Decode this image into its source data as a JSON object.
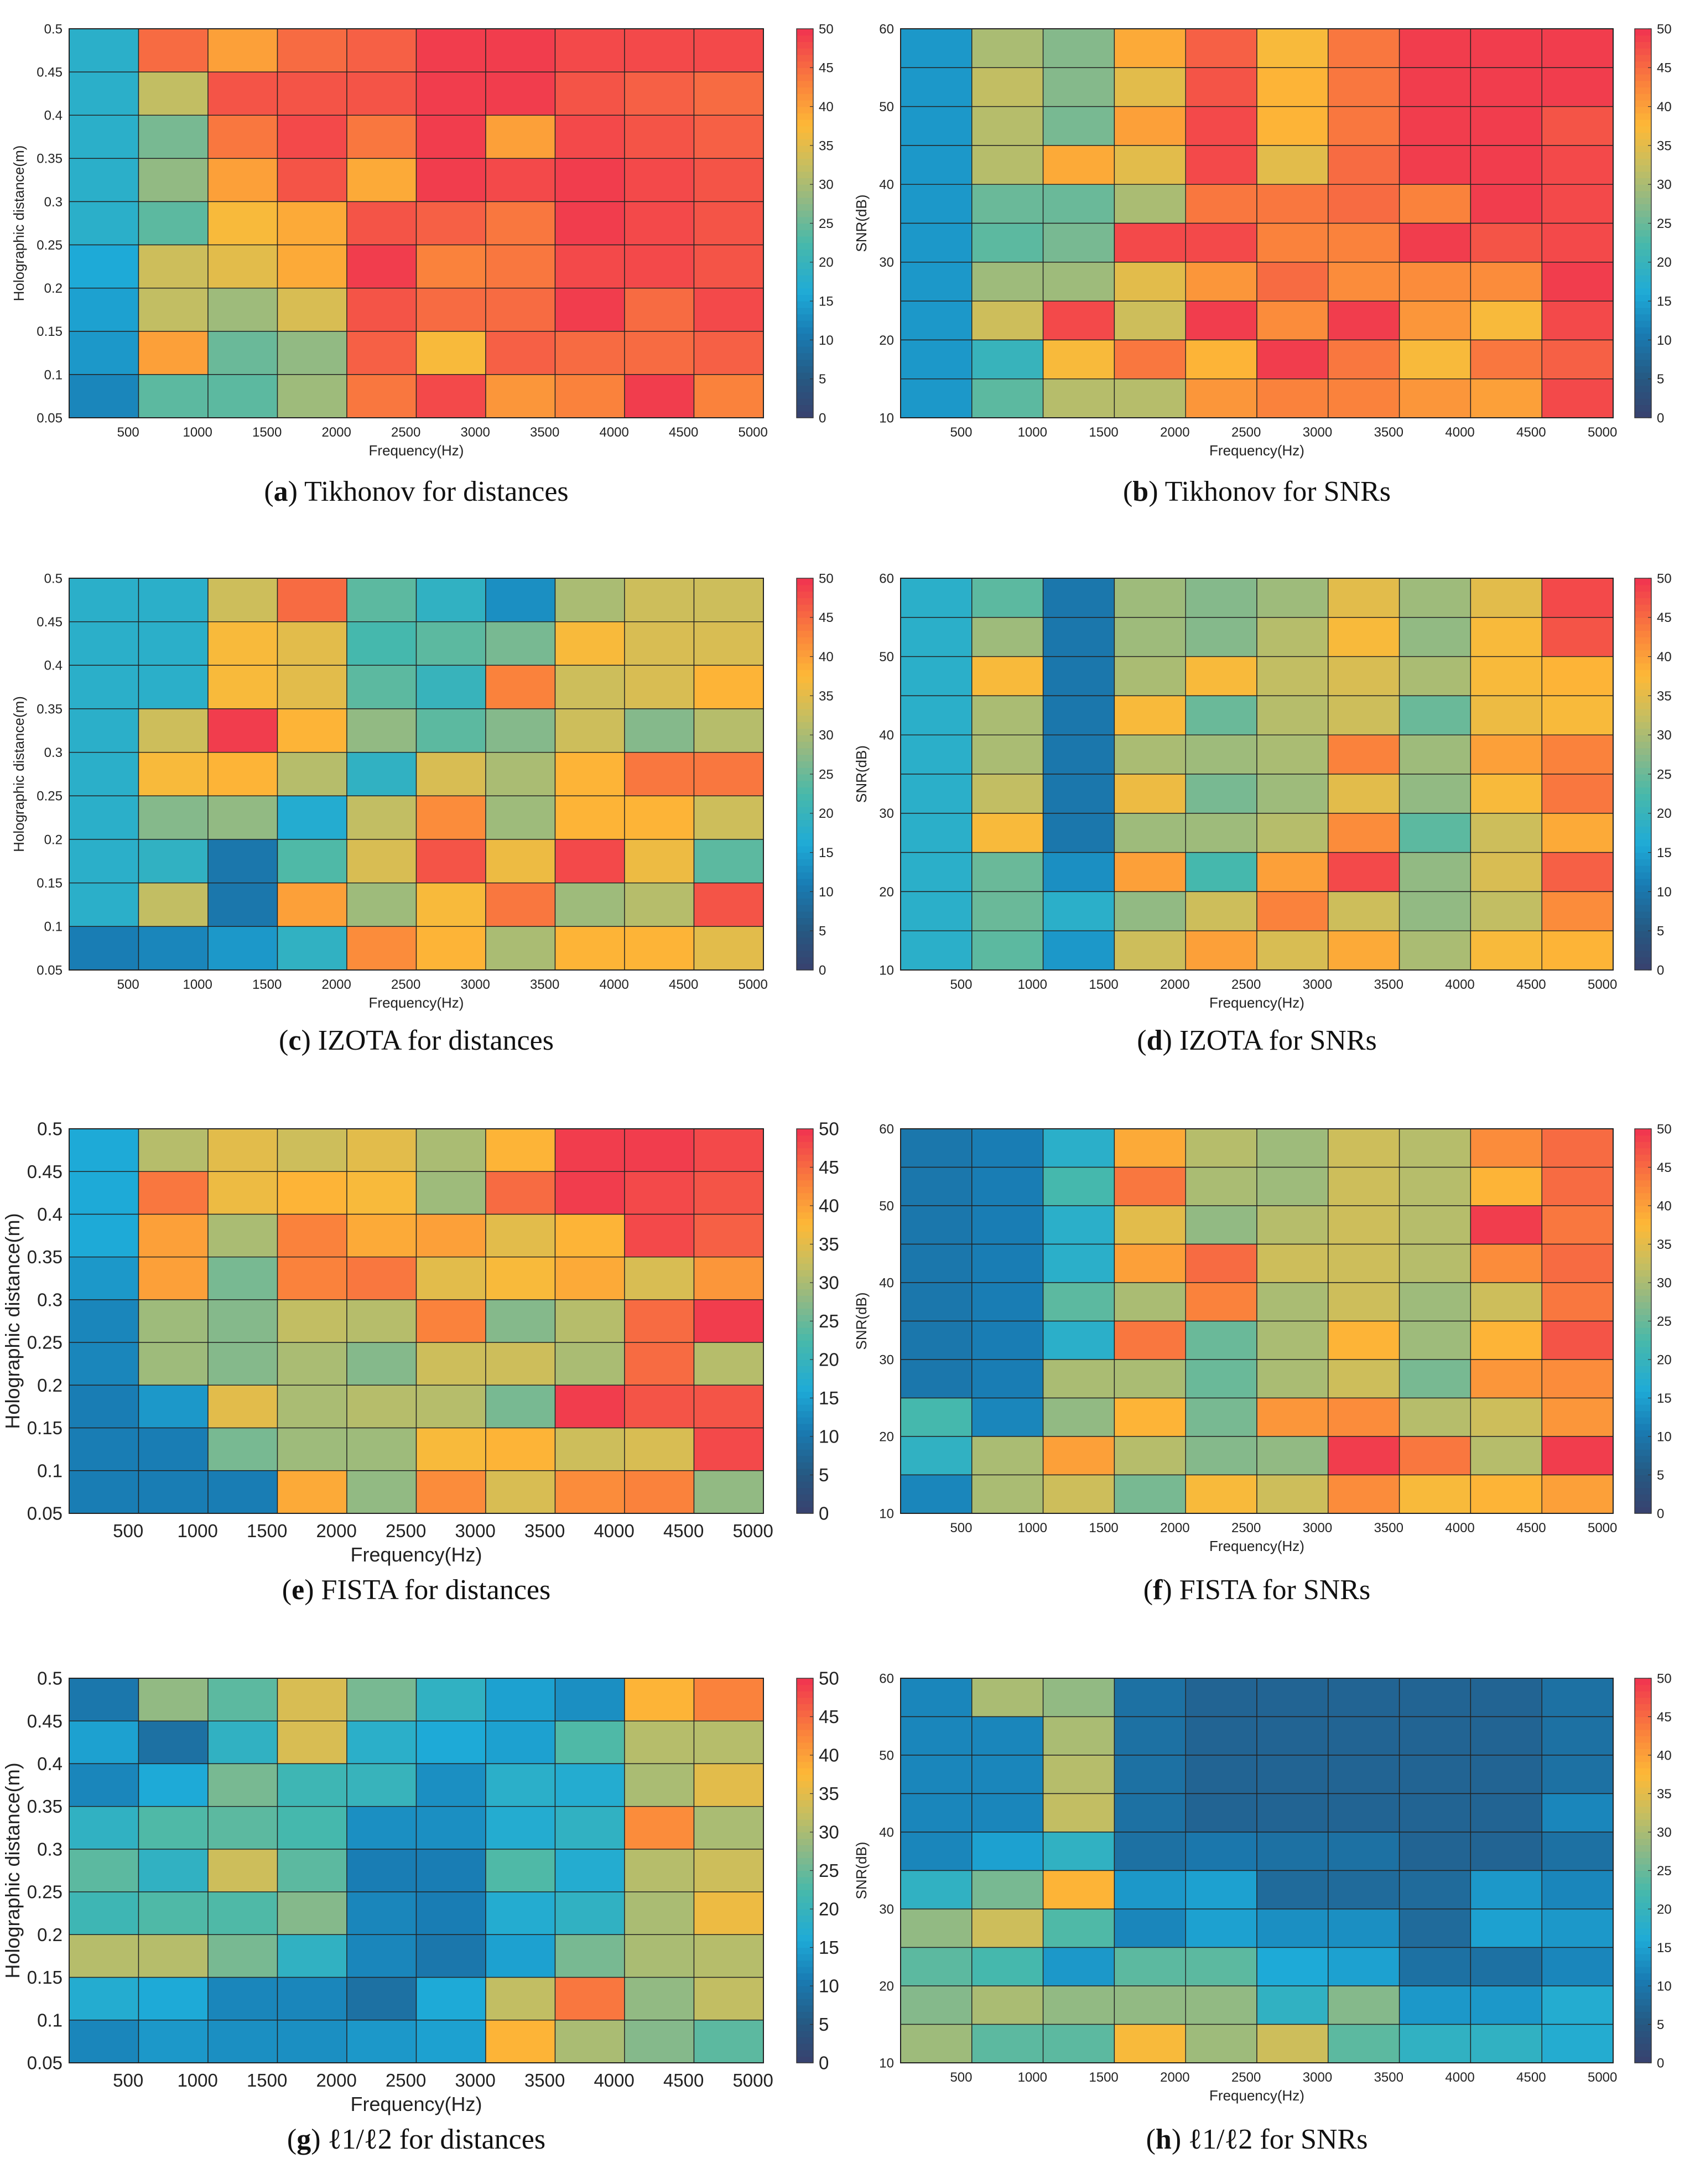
{
  "chart_data": [
    {
      "id": "a",
      "type": "heatmap",
      "caption_letter": "a",
      "caption_text": "Tikhonov for distances",
      "xlabel": "Frequency(Hz)",
      "ylabel": "Holographic distance(m)",
      "xticks": [
        "500",
        "1000",
        "1500",
        "2000",
        "2500",
        "3000",
        "3500",
        "4000",
        "4500",
        "5000"
      ],
      "yticks": [
        "0.05",
        "0.1",
        "0.15",
        "0.2",
        "0.25",
        "0.3",
        "0.35",
        "0.4",
        "0.45",
        "0.5"
      ],
      "colorbar_ticks": [
        "0",
        "5",
        "10",
        "15",
        "20",
        "25",
        "30",
        "35",
        "40",
        "45",
        "50"
      ],
      "clim": [
        0,
        50
      ],
      "values": [
        [
          18,
          45,
          40,
          45,
          46,
          49,
          49,
          48,
          48,
          48
        ],
        [
          18,
          32,
          47,
          47,
          47,
          49,
          49,
          47,
          46,
          45
        ],
        [
          18,
          26,
          44,
          48,
          44,
          49,
          40,
          48,
          47,
          46
        ],
        [
          18,
          28,
          40,
          47,
          39,
          49,
          48,
          49,
          48,
          47
        ],
        [
          18,
          24,
          37,
          39,
          47,
          46,
          44,
          49,
          48,
          47
        ],
        [
          16,
          33,
          35,
          39,
          49,
          43,
          44,
          48,
          48,
          47
        ],
        [
          15,
          32,
          29,
          34,
          47,
          45,
          45,
          49,
          45,
          48
        ],
        [
          14,
          40,
          25,
          28,
          46,
          37,
          46,
          45,
          45,
          46
        ],
        [
          12,
          24,
          24,
          29,
          44,
          48,
          41,
          43,
          49,
          43
        ]
      ]
    },
    {
      "id": "b",
      "type": "heatmap",
      "caption_letter": "b",
      "caption_text": "Tikhonov for SNRs",
      "xlabel": "Frequency(Hz)",
      "ylabel": "SNR(dB)",
      "xticks": [
        "500",
        "1000",
        "1500",
        "2000",
        "2500",
        "3000",
        "3500",
        "4000",
        "4500",
        "5000"
      ],
      "yticks": [
        "10",
        "20",
        "30",
        "40",
        "50",
        "60"
      ],
      "colorbar_ticks": [
        "0",
        "5",
        "10",
        "15",
        "20",
        "25",
        "30",
        "35",
        "40",
        "45",
        "50"
      ],
      "clim": [
        0,
        50
      ],
      "values": [
        [
          14,
          30,
          27,
          39,
          46,
          37,
          44,
          49,
          49,
          49
        ],
        [
          14,
          32,
          27,
          35,
          47,
          38,
          44,
          49,
          49,
          49
        ],
        [
          14,
          31,
          26,
          40,
          48,
          38,
          44,
          49,
          49,
          47
        ],
        [
          14,
          31,
          39,
          35,
          48,
          35,
          45,
          49,
          49,
          48
        ],
        [
          14,
          25,
          25,
          30,
          44,
          44,
          45,
          43,
          49,
          48
        ],
        [
          14,
          24,
          26,
          48,
          48,
          43,
          43,
          49,
          47,
          48
        ],
        [
          14,
          29,
          29,
          35,
          41,
          45,
          42,
          42,
          42,
          49
        ],
        [
          14,
          33,
          48,
          33,
          49,
          42,
          49,
          41,
          37,
          48
        ],
        [
          14,
          20,
          37,
          44,
          38,
          49,
          44,
          37,
          44,
          46
        ],
        [
          14,
          24,
          31,
          31,
          41,
          43,
          43,
          41,
          40,
          48
        ]
      ]
    },
    {
      "id": "c",
      "type": "heatmap",
      "caption_letter": "c",
      "caption_text": "IZOTA for distances",
      "xlabel": "Frequency(Hz)",
      "ylabel": "Holographic distance(m)",
      "xticks": [
        "500",
        "1000",
        "1500",
        "2000",
        "2500",
        "3000",
        "3500",
        "4000",
        "4500",
        "5000"
      ],
      "yticks": [
        "0.05",
        "0.1",
        "0.15",
        "0.2",
        "0.25",
        "0.3",
        "0.35",
        "0.4",
        "0.45",
        "0.5"
      ],
      "colorbar_ticks": [
        "0",
        "5",
        "10",
        "15",
        "20",
        "25",
        "30",
        "35",
        "40",
        "45",
        "50"
      ],
      "clim": [
        0,
        50
      ],
      "values": [
        [
          18,
          18,
          33,
          45,
          24,
          19,
          13,
          30,
          33,
          33
        ],
        [
          18,
          18,
          37,
          35,
          22,
          24,
          26,
          37,
          34,
          34
        ],
        [
          18,
          18,
          37,
          35,
          24,
          20,
          43,
          33,
          34,
          38
        ],
        [
          18,
          33,
          49,
          38,
          28,
          24,
          27,
          33,
          27,
          31
        ],
        [
          18,
          37,
          38,
          31,
          19,
          34,
          30,
          38,
          44,
          44
        ],
        [
          18,
          27,
          28,
          17,
          32,
          42,
          29,
          38,
          38,
          33
        ],
        [
          18,
          19,
          10,
          23,
          34,
          47,
          36,
          48,
          36,
          24
        ],
        [
          18,
          32,
          10,
          40,
          29,
          37,
          44,
          29,
          31,
          47
        ],
        [
          11,
          12,
          14,
          19,
          42,
          38,
          30,
          38,
          38,
          35
        ]
      ]
    },
    {
      "id": "d",
      "type": "heatmap",
      "caption_letter": "d",
      "caption_text": "IZOTA for SNRs",
      "xlabel": "Frequency(Hz)",
      "ylabel": "SNR(dB)",
      "xticks": [
        "500",
        "1000",
        "1500",
        "2000",
        "2500",
        "3000",
        "3500",
        "4000",
        "4500",
        "5000"
      ],
      "yticks": [
        "10",
        "20",
        "30",
        "40",
        "50",
        "60"
      ],
      "colorbar_ticks": [
        "0",
        "5",
        "10",
        "15",
        "20",
        "25",
        "30",
        "35",
        "40",
        "45",
        "50"
      ],
      "clim": [
        0,
        50
      ],
      "values": [
        [
          18,
          24,
          10,
          29,
          27,
          29,
          35,
          29,
          35,
          48
        ],
        [
          18,
          29,
          10,
          29,
          27,
          31,
          37,
          28,
          37,
          47
        ],
        [
          18,
          37,
          10,
          30,
          37,
          32,
          34,
          30,
          37,
          38
        ],
        [
          18,
          30,
          10,
          37,
          25,
          31,
          33,
          25,
          36,
          37
        ],
        [
          18,
          30,
          10,
          30,
          29,
          30,
          43,
          29,
          40,
          43
        ],
        [
          18,
          32,
          10,
          36,
          26,
          29,
          35,
          28,
          37,
          44
        ],
        [
          18,
          37,
          10,
          29,
          29,
          31,
          42,
          24,
          33,
          39
        ],
        [
          18,
          25,
          13,
          40,
          22,
          40,
          48,
          28,
          34,
          46
        ],
        [
          18,
          25,
          18,
          28,
          33,
          43,
          33,
          28,
          32,
          42
        ],
        [
          18,
          24,
          14,
          33,
          40,
          34,
          39,
          30,
          37,
          38
        ]
      ]
    },
    {
      "id": "e",
      "type": "heatmap",
      "caption_letter": "e",
      "caption_text": "FISTA for distances",
      "xlabel": "Frequency(Hz)",
      "ylabel": "Holographic distance(m)",
      "xticks": [
        "500",
        "1000",
        "1500",
        "2000",
        "2500",
        "3000",
        "3500",
        "4000",
        "4500",
        "5000"
      ],
      "yticks": [
        "0.05",
        "0.1",
        "0.15",
        "0.2",
        "0.25",
        "0.3",
        "0.35",
        "0.4",
        "0.45",
        "0.5"
      ],
      "colorbar_ticks": [
        "0",
        "5",
        "10",
        "15",
        "20",
        "25",
        "30",
        "35",
        "40",
        "45",
        "50"
      ],
      "clim": [
        0,
        50
      ],
      "values": [
        [
          16,
          31,
          35,
          33,
          35,
          30,
          38,
          49,
          49,
          48
        ],
        [
          16,
          44,
          36,
          38,
          37,
          29,
          45,
          49,
          48,
          47
        ],
        [
          16,
          40,
          30,
          43,
          39,
          40,
          35,
          38,
          48,
          46
        ],
        [
          14,
          40,
          26,
          43,
          44,
          35,
          37,
          39,
          34,
          41
        ],
        [
          12,
          29,
          27,
          32,
          31,
          43,
          27,
          31,
          45,
          49
        ],
        [
          12,
          29,
          27,
          30,
          27,
          33,
          33,
          30,
          45,
          31
        ],
        [
          11,
          14,
          35,
          30,
          31,
          31,
          26,
          49,
          47,
          47
        ],
        [
          11,
          11,
          26,
          29,
          29,
          37,
          38,
          33,
          34,
          48
        ],
        [
          11,
          11,
          11,
          39,
          28,
          42,
          34,
          42,
          43,
          28
        ]
      ]
    },
    {
      "id": "f",
      "type": "heatmap",
      "caption_letter": "f",
      "caption_text": "FISTA for SNRs",
      "xlabel": "Frequency(Hz)",
      "ylabel": "SNR(dB)",
      "xticks": [
        "500",
        "1000",
        "1500",
        "2000",
        "2500",
        "3000",
        "3500",
        "4000",
        "4500",
        "5000"
      ],
      "yticks": [
        "10",
        "20",
        "30",
        "40",
        "50",
        "60"
      ],
      "colorbar_ticks": [
        "0",
        "5",
        "10",
        "15",
        "20",
        "25",
        "30",
        "35",
        "40",
        "45",
        "50"
      ],
      "clim": [
        0,
        50
      ],
      "values": [
        [
          10,
          11,
          18,
          39,
          31,
          29,
          33,
          31,
          42,
          45
        ],
        [
          10,
          11,
          22,
          44,
          30,
          29,
          33,
          31,
          38,
          45
        ],
        [
          10,
          11,
          18,
          35,
          28,
          31,
          33,
          31,
          49,
          44
        ],
        [
          10,
          11,
          18,
          40,
          45,
          33,
          33,
          31,
          42,
          45
        ],
        [
          10,
          11,
          24,
          30,
          43,
          30,
          33,
          29,
          33,
          44
        ],
        [
          10,
          11,
          18,
          44,
          25,
          30,
          38,
          29,
          38,
          47
        ],
        [
          10,
          11,
          30,
          30,
          25,
          30,
          33,
          26,
          41,
          42
        ],
        [
          22,
          12,
          28,
          38,
          26,
          41,
          42,
          31,
          33,
          41
        ],
        [
          19,
          30,
          40,
          31,
          27,
          28,
          49,
          44,
          31,
          49
        ],
        [
          12,
          30,
          33,
          26,
          37,
          33,
          42,
          37,
          38,
          40
        ]
      ]
    },
    {
      "id": "g",
      "type": "heatmap",
      "caption_letter": "g",
      "caption_text": "ℓ1/ℓ2 for distances",
      "xlabel": "Frequency(Hz)",
      "ylabel": "Holographic distance(m)",
      "xticks": [
        "500",
        "1000",
        "1500",
        "2000",
        "2500",
        "3000",
        "3500",
        "4000",
        "4500",
        "5000"
      ],
      "yticks": [
        "0.05",
        "0.1",
        "0.15",
        "0.2",
        "0.25",
        "0.3",
        "0.35",
        "0.4",
        "0.45",
        "0.5"
      ],
      "colorbar_ticks": [
        "0",
        "5",
        "10",
        "15",
        "20",
        "25",
        "30",
        "35",
        "40",
        "45",
        "50"
      ],
      "clim": [
        0,
        50
      ],
      "values": [
        [
          10,
          28,
          24,
          34,
          26,
          19,
          15,
          13,
          38,
          43
        ],
        [
          15,
          9,
          19,
          34,
          18,
          16,
          15,
          23,
          31,
          31
        ],
        [
          12,
          16,
          26,
          21,
          20,
          13,
          18,
          17,
          30,
          35
        ],
        [
          19,
          23,
          24,
          22,
          13,
          13,
          17,
          19,
          42,
          30
        ],
        [
          24,
          19,
          33,
          24,
          11,
          11,
          23,
          17,
          31,
          33
        ],
        [
          21,
          23,
          23,
          27,
          12,
          11,
          17,
          19,
          30,
          36
        ],
        [
          31,
          31,
          26,
          19,
          12,
          10,
          15,
          26,
          30,
          31
        ],
        [
          17,
          16,
          12,
          12,
          9,
          16,
          32,
          44,
          28,
          32
        ],
        [
          12,
          14,
          13,
          13,
          14,
          15,
          38,
          30,
          27,
          24
        ]
      ]
    },
    {
      "id": "h",
      "type": "heatmap",
      "caption_letter": "h",
      "caption_text": "ℓ1/ℓ2 for SNRs",
      "xlabel": "Frequency(Hz)",
      "ylabel": "SNR(dB)",
      "xticks": [
        "500",
        "1000",
        "1500",
        "2000",
        "2500",
        "3000",
        "3500",
        "4000",
        "4500",
        "5000"
      ],
      "yticks": [
        "10",
        "20",
        "30",
        "40",
        "50",
        "60"
      ],
      "colorbar_ticks": [
        "0",
        "5",
        "10",
        "15",
        "20",
        "25",
        "30",
        "35",
        "40",
        "45",
        "50"
      ],
      "clim": [
        0,
        50
      ],
      "values": [
        [
          12,
          30,
          28,
          9,
          7,
          7,
          7,
          7,
          7,
          9
        ],
        [
          12,
          12,
          30,
          9,
          7,
          7,
          7,
          7,
          7,
          9
        ],
        [
          12,
          12,
          31,
          9,
          7,
          7,
          7,
          7,
          7,
          9
        ],
        [
          12,
          12,
          32,
          9,
          7,
          7,
          7,
          7,
          7,
          12
        ],
        [
          12,
          15,
          19,
          9,
          10,
          9,
          9,
          7,
          7,
          9
        ],
        [
          19,
          26,
          38,
          14,
          15,
          8,
          8,
          8,
          14,
          12
        ],
        [
          28,
          33,
          23,
          12,
          15,
          13,
          13,
          8,
          15,
          14
        ],
        [
          24,
          22,
          14,
          24,
          24,
          16,
          15,
          9,
          9,
          12
        ],
        [
          27,
          30,
          28,
          28,
          28,
          19,
          27,
          14,
          14,
          17
        ],
        [
          29,
          24,
          24,
          37,
          29,
          33,
          24,
          19,
          19,
          17
        ]
      ]
    }
  ]
}
